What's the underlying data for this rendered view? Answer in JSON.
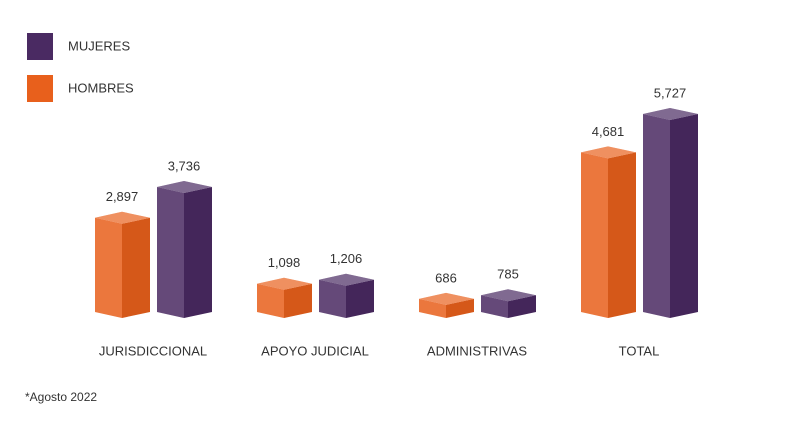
{
  "chart_data": {
    "type": "bar",
    "categories": [
      "JURISDICCIONAL",
      "APOYO JUDICIAL",
      "ADMINISTRIVAS",
      "TOTAL"
    ],
    "series": [
      {
        "name": "HOMBRES",
        "color": "#e8601c",
        "values": [
          2897,
          1098,
          686,
          4681
        ],
        "value_labels": [
          "2,897",
          "1,098",
          "686",
          "4,681"
        ]
      },
      {
        "name": "MUJERES",
        "color": "#4a2a62",
        "values": [
          3736,
          1206,
          785,
          5727
        ],
        "value_labels": [
          "3,736",
          "1,206",
          "785",
          "5,727"
        ]
      }
    ],
    "legend_order": [
      "MUJERES",
      "HOMBRES"
    ],
    "note": "*Agosto 2022"
  }
}
